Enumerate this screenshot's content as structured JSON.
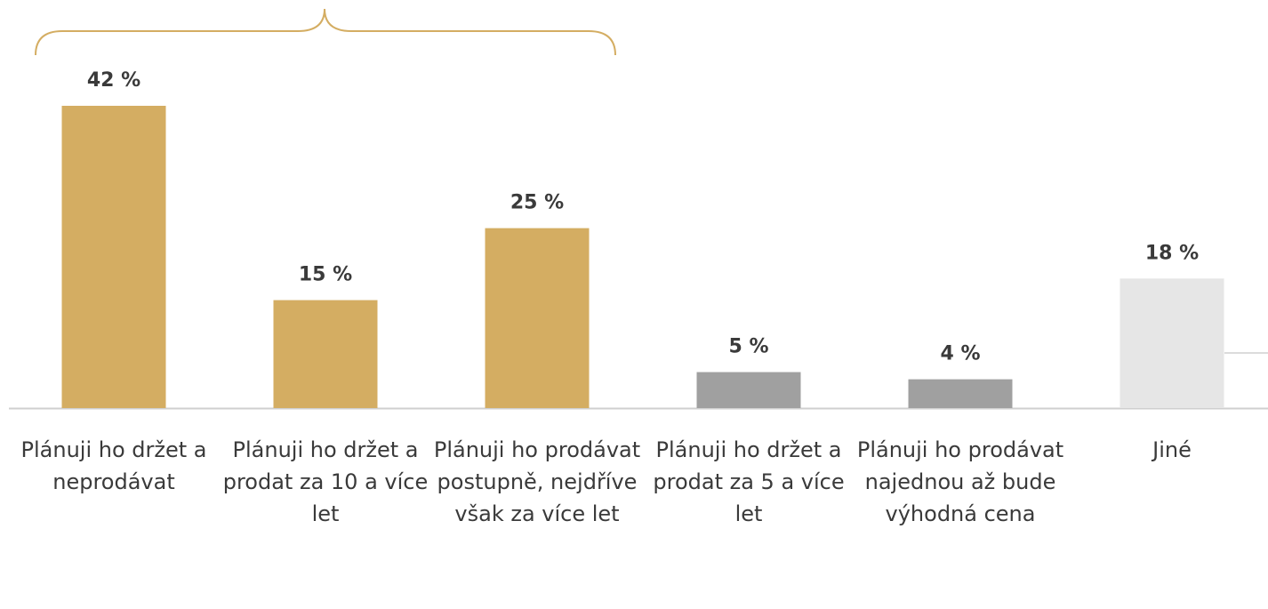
{
  "chart_data": {
    "type": "bar",
    "categories": [
      "Plánuji ho držet a neprodávat",
      "Plánuji ho držet a prodat za 10 a více let",
      "Plánuji ho prodávat postupně, nejdříve však za více let",
      "Plánuji ho držet a prodat za 5 a více let",
      "Plánuji ho prodávat najednou až bude výhodná cena",
      "Jiné"
    ],
    "values": [
      42,
      15,
      25,
      5,
      4,
      18
    ],
    "value_labels": [
      "42 %",
      "15 %",
      "25 %",
      "5 %",
      "4 %",
      "18 %"
    ],
    "colors": [
      "#d4ad62",
      "#d4ad62",
      "#d4ad62",
      "#a0a0a0",
      "#a0a0a0",
      "#e6e6e6"
    ]
  }
}
